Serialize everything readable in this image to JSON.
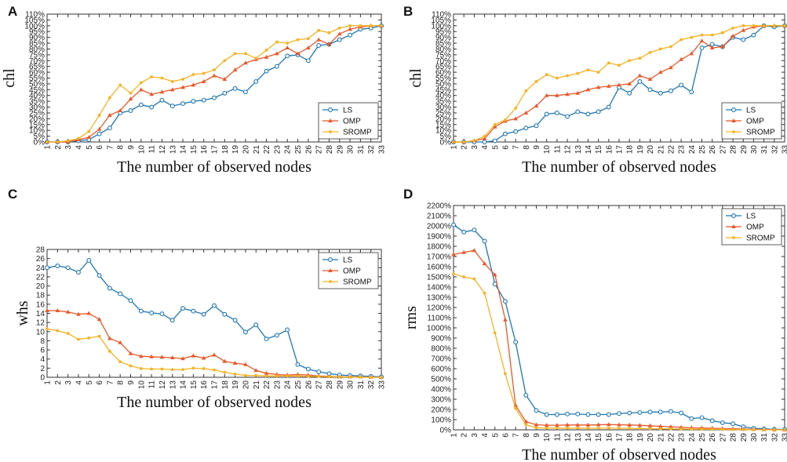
{
  "series_names": [
    "LS",
    "OMP",
    "SROMP"
  ],
  "colors": {
    "LS": "#1f77b4",
    "OMP": "#e8582a",
    "SROMP": "#f5b324"
  },
  "chart_data": [
    {
      "panel": "A",
      "type": "line",
      "xlabel": "The number of observed nodes",
      "ylabel": "chl",
      "x": [
        1,
        2,
        3,
        4,
        5,
        6,
        7,
        8,
        9,
        10,
        11,
        12,
        13,
        14,
        15,
        16,
        17,
        18,
        19,
        20,
        21,
        22,
        23,
        24,
        25,
        26,
        27,
        28,
        29,
        30,
        31,
        32,
        33
      ],
      "ylim": [
        0,
        110
      ],
      "yticks": [
        0,
        5,
        10,
        15,
        20,
        25,
        30,
        35,
        40,
        45,
        50,
        55,
        60,
        65,
        70,
        75,
        80,
        85,
        90,
        95,
        100,
        105,
        110
      ],
      "ytick_suffix": "%",
      "legend_position": "bottom-right",
      "series": [
        {
          "name": "LS",
          "values": [
            0,
            0,
            0,
            1,
            2,
            7,
            12,
            25,
            27,
            32,
            30,
            36,
            31,
            33,
            35,
            36,
            38,
            42,
            46,
            43,
            52,
            61,
            65,
            74,
            75,
            70,
            83,
            84,
            88,
            92,
            97,
            98,
            100
          ]
        },
        {
          "name": "OMP",
          "values": [
            0,
            0,
            0,
            2,
            4,
            11,
            23,
            27,
            37,
            45,
            41,
            43,
            45,
            47,
            49,
            52,
            57,
            54,
            62,
            68,
            71,
            73,
            76,
            81,
            76,
            81,
            88,
            84,
            93,
            97,
            99,
            100,
            100
          ]
        },
        {
          "name": "SROMP",
          "values": [
            0,
            0,
            1,
            3,
            9,
            23,
            38,
            49,
            42,
            51,
            56,
            55,
            52,
            54,
            58,
            59,
            62,
            70,
            76,
            76,
            72,
            79,
            86,
            85,
            88,
            89,
            96,
            94,
            98,
            100,
            100,
            100,
            100
          ]
        }
      ]
    },
    {
      "panel": "B",
      "type": "line",
      "xlabel": "The number of observed nodes",
      "ylabel": "chl",
      "x": [
        1,
        2,
        3,
        4,
        5,
        6,
        7,
        8,
        9,
        10,
        11,
        12,
        13,
        14,
        15,
        16,
        17,
        18,
        19,
        20,
        21,
        22,
        23,
        24,
        25,
        26,
        27,
        28,
        29,
        30,
        31,
        32,
        33
      ],
      "ylim": [
        0,
        110
      ],
      "yticks": [
        0,
        5,
        10,
        15,
        20,
        25,
        30,
        35,
        40,
        45,
        50,
        55,
        60,
        65,
        70,
        75,
        80,
        85,
        90,
        95,
        100,
        105,
        110
      ],
      "ytick_suffix": "%",
      "legend_position": "bottom-right",
      "series": [
        {
          "name": "LS",
          "values": [
            0,
            0,
            0,
            0,
            1,
            7,
            9,
            12,
            14,
            24,
            25,
            22,
            26,
            24,
            26,
            30,
            47,
            42,
            52,
            45,
            42,
            44,
            49,
            43,
            81,
            84,
            82,
            90,
            88,
            92,
            100,
            99,
            100
          ]
        },
        {
          "name": "OMP",
          "values": [
            0,
            0,
            1,
            3,
            13,
            18,
            20,
            25,
            31,
            40,
            40,
            41,
            42,
            45,
            47,
            48,
            49,
            50,
            57,
            54,
            60,
            64,
            71,
            76,
            87,
            81,
            82,
            91,
            96,
            99,
            100,
            100,
            100
          ]
        },
        {
          "name": "SROMP",
          "values": [
            0,
            0,
            1,
            5,
            15,
            19,
            29,
            44,
            52,
            58,
            55,
            57,
            59,
            62,
            60,
            68,
            66,
            70,
            72,
            77,
            80,
            82,
            88,
            90,
            92,
            92,
            94,
            98,
            100,
            100,
            100,
            100,
            100
          ]
        }
      ]
    },
    {
      "panel": "C",
      "type": "line",
      "xlabel": "The number of observed nodes",
      "ylabel": "whs",
      "x": [
        1,
        2,
        3,
        4,
        5,
        6,
        7,
        8,
        9,
        10,
        11,
        12,
        13,
        14,
        15,
        16,
        17,
        18,
        19,
        20,
        21,
        22,
        23,
        24,
        25,
        26,
        27,
        28,
        29,
        30,
        31,
        32,
        33
      ],
      "ylim": [
        0,
        28
      ],
      "yticks": [
        0,
        2,
        4,
        6,
        8,
        10,
        12,
        14,
        16,
        18,
        20,
        22,
        24,
        26,
        28
      ],
      "ytick_suffix": "",
      "legend_position": "top-right",
      "series": [
        {
          "name": "LS",
          "values": [
            24.0,
            24.4,
            24.0,
            23.0,
            25.6,
            22.3,
            19.5,
            18.3,
            16.8,
            14.5,
            14.1,
            13.9,
            12.5,
            15.1,
            14.5,
            13.8,
            15.7,
            13.8,
            12.5,
            9.9,
            11.5,
            8.4,
            9.2,
            10.4,
            2.8,
            1.8,
            1.2,
            0.8,
            0.5,
            0.4,
            0.3,
            0.2,
            0.1
          ]
        },
        {
          "name": "OMP",
          "values": [
            14.6,
            14.6,
            14.3,
            13.8,
            14.0,
            12.7,
            8.5,
            7.6,
            5.2,
            4.6,
            4.5,
            4.4,
            4.3,
            4.1,
            4.7,
            4.2,
            4.9,
            3.5,
            3.1,
            2.8,
            1.5,
            0.9,
            0.6,
            0.5,
            0.6,
            0.5,
            0.3,
            0.2,
            0.1,
            0.1,
            0.1,
            0.05,
            0.0
          ]
        },
        {
          "name": "SROMP",
          "values": [
            10.6,
            10.2,
            9.6,
            8.3,
            8.6,
            9.0,
            5.7,
            3.4,
            2.5,
            1.9,
            1.8,
            1.8,
            1.7,
            1.7,
            2.0,
            1.9,
            1.6,
            1.1,
            0.7,
            0.4,
            0.4,
            0.3,
            0.3,
            0.3,
            0.3,
            0.2,
            0.2,
            0.1,
            0.1,
            0.05,
            0.05,
            0.0,
            0.0
          ]
        }
      ]
    },
    {
      "panel": "D",
      "type": "line",
      "xlabel": "The number of observed nodes",
      "ylabel": "rms",
      "x": [
        1,
        2,
        3,
        4,
        5,
        6,
        7,
        8,
        9,
        10,
        11,
        12,
        13,
        14,
        15,
        16,
        17,
        18,
        19,
        20,
        21,
        22,
        23,
        24,
        25,
        26,
        27,
        28,
        29,
        30,
        31,
        32,
        33
      ],
      "ylim": [
        0,
        2200
      ],
      "yticks": [
        0,
        100,
        200,
        300,
        400,
        500,
        600,
        700,
        800,
        900,
        1000,
        1100,
        1200,
        1300,
        1400,
        1500,
        1600,
        1700,
        1800,
        1900,
        2000,
        2100,
        2200
      ],
      "ytick_suffix": "%",
      "legend_position": "top-right",
      "series": [
        {
          "name": "LS",
          "values": [
            2010,
            1940,
            1960,
            1850,
            1430,
            1260,
            860,
            340,
            190,
            150,
            150,
            155,
            155,
            150,
            150,
            150,
            160,
            165,
            170,
            175,
            175,
            180,
            165,
            110,
            120,
            90,
            70,
            60,
            30,
            15,
            10,
            5,
            5
          ]
        },
        {
          "name": "OMP",
          "values": [
            1720,
            1740,
            1760,
            1630,
            1520,
            1080,
            240,
            80,
            50,
            45,
            45,
            48,
            48,
            48,
            50,
            52,
            50,
            48,
            45,
            40,
            35,
            30,
            25,
            20,
            18,
            15,
            12,
            10,
            8,
            5,
            3,
            2,
            1
          ]
        },
        {
          "name": "SROMP",
          "values": [
            1530,
            1500,
            1480,
            1340,
            950,
            550,
            210,
            50,
            20,
            18,
            18,
            17,
            17,
            16,
            16,
            16,
            15,
            14,
            13,
            12,
            10,
            9,
            8,
            7,
            6,
            5,
            4,
            3,
            2,
            1,
            1,
            0,
            0
          ]
        }
      ]
    }
  ]
}
